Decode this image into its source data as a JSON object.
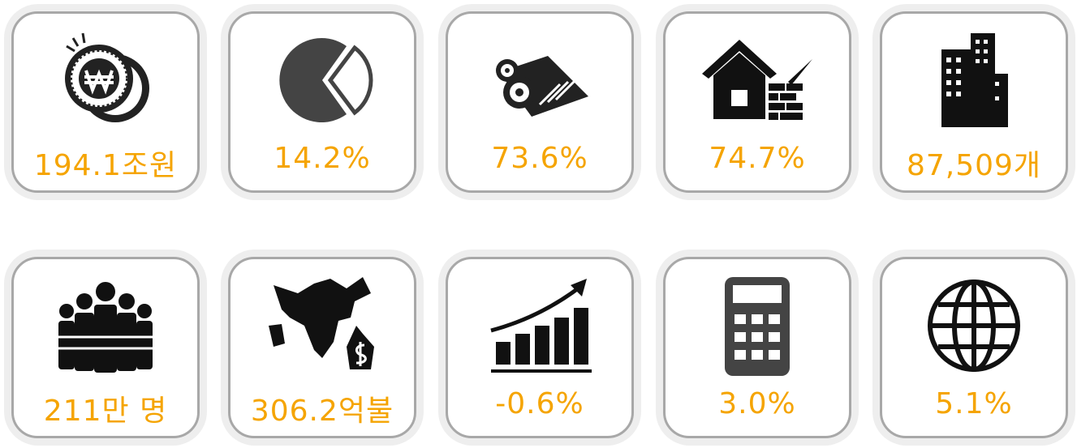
{
  "cards": [
    {
      "value": "194.1조원"
    },
    {
      "value": "14.2%"
    },
    {
      "value": "73.6%"
    },
    {
      "value": "74.7%"
    },
    {
      "value": "87,509개"
    },
    {
      "value": "211만 명"
    },
    {
      "value": "306.2억불"
    },
    {
      "value": "-0.6%"
    },
    {
      "value": "3.0%"
    },
    {
      "value": "5.1%"
    }
  ]
}
